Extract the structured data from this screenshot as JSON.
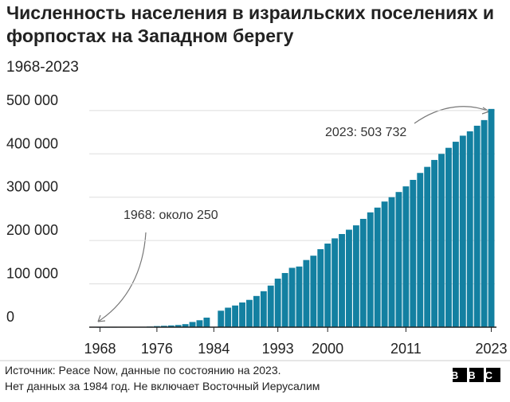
{
  "chart_data": {
    "type": "bar",
    "title": "Численность населения в израильских поселениях и форпостах на Западном берегу",
    "subtitle": "1968-2023",
    "x": [
      1968,
      1969,
      1970,
      1971,
      1972,
      1973,
      1974,
      1975,
      1976,
      1977,
      1978,
      1979,
      1980,
      1981,
      1982,
      1983,
      1984,
      1985,
      1986,
      1987,
      1988,
      1989,
      1990,
      1991,
      1992,
      1993,
      1994,
      1995,
      1996,
      1997,
      1998,
      1999,
      2000,
      2001,
      2002,
      2003,
      2004,
      2005,
      2006,
      2007,
      2008,
      2009,
      2010,
      2011,
      2012,
      2013,
      2014,
      2015,
      2016,
      2017,
      2018,
      2019,
      2020,
      2021,
      2022,
      2023
    ],
    "values": [
      250,
      300,
      400,
      500,
      600,
      800,
      1000,
      1500,
      2500,
      3200,
      4000,
      5000,
      7000,
      12000,
      16000,
      22000,
      null,
      38000,
      45000,
      50000,
      57000,
      63000,
      72000,
      83000,
      96000,
      112000,
      125000,
      137000,
      140000,
      155000,
      165000,
      180000,
      193000,
      205000,
      215000,
      225000,
      235000,
      250000,
      265000,
      276000,
      290000,
      300000,
      312000,
      325000,
      340000,
      356000,
      370000,
      386000,
      400000,
      414000,
      428000,
      442000,
      452000,
      465000,
      478000,
      503732
    ],
    "color": "#1380a1",
    "xlim": [
      1967.5,
      2023.5
    ],
    "xticks": [
      1968,
      1976,
      1984,
      1993,
      2000,
      2011,
      2023
    ],
    "ylim": [
      0,
      520000
    ],
    "yticks": [
      0,
      {
        "value": 100000,
        "label": "100 000"
      },
      {
        "value": 200000,
        "label": "200 000"
      },
      {
        "value": 300000,
        "label": "300 000"
      },
      {
        "value": 400000,
        "label": "400 000"
      },
      {
        "value": 500000,
        "label": "500 000"
      }
    ],
    "grid": true,
    "annotations": [
      "1968: около 250",
      "2023: 503 732"
    ],
    "source": [
      "Источник: Peace Now, данные по состоянию на 2023.",
      "Нет данных за 1984 год. Не включает Восточный Иерусалим"
    ],
    "logo": "BBC"
  }
}
